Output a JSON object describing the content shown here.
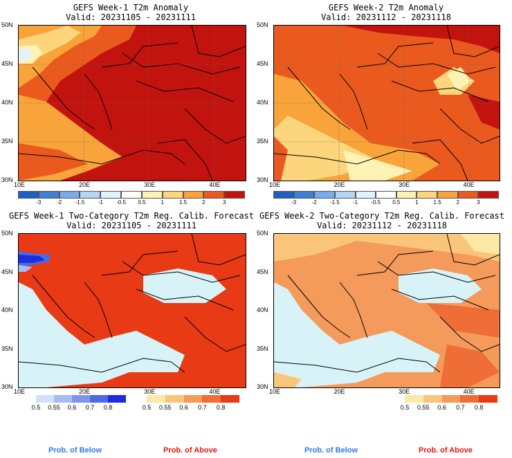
{
  "panels": [
    {
      "id": "p1",
      "title1": "GEFS Week-1 T2m Anomaly",
      "title2": "Valid: 20231105 - 20231111"
    },
    {
      "id": "p2",
      "title1": "GEFS Week-2 T2m Anomaly",
      "title2": "Valid: 20231112 - 20231118"
    },
    {
      "id": "p3",
      "title1": "GEFS Week-1 Two-Category T2m Reg. Calib. Forecast",
      "title2": "Valid: 20231105 - 20231111"
    },
    {
      "id": "p4",
      "title1": "GEFS Week-2 Two-Category T2m Reg. Calib. Forecast",
      "title2": "Valid: 20231112 - 20231118"
    }
  ],
  "axes": {
    "lat_labels": [
      "50N",
      "45N",
      "40N",
      "35N",
      "30N"
    ],
    "lon_labels": [
      "10E",
      "20E",
      "30E",
      "40E"
    ]
  },
  "anomaly_colorbar": {
    "labels": [
      "-3",
      "-2",
      "-1.5",
      "-1",
      "-0.5",
      "0.5",
      "1",
      "1.5",
      "2",
      "3"
    ],
    "colors": [
      "#1f5fbf",
      "#3f80d6",
      "#78aee8",
      "#b4d6f2",
      "#e4f2fb",
      "#ffffff",
      "#fff2b2",
      "#fcd57c",
      "#f8a43a",
      "#ea5a1e",
      "#c3130f"
    ]
  },
  "prob_colorbars": {
    "below": {
      "labels": [
        "0.5",
        "0.55",
        "0.6",
        "0.7",
        "0.8"
      ],
      "colors": [
        "#d3e0fb",
        "#a8bcf4",
        "#7f95ec",
        "#5068e3",
        "#1a2ee0"
      ]
    },
    "above": {
      "labels": [
        "0.5",
        "0.55",
        "0.6",
        "0.7",
        "0.8"
      ],
      "colors": [
        "#fce8a7",
        "#f9c57b",
        "#f49a5a",
        "#ef6d36",
        "#e83a14"
      ]
    }
  },
  "legend": {
    "below_label": "Prob. of Below",
    "above_label": "Prob. of Above",
    "below_color": "#2a7be8",
    "above_color": "#e8140c"
  },
  "palette": {
    "sea": "#d8f3f8",
    "border": "#000000"
  }
}
